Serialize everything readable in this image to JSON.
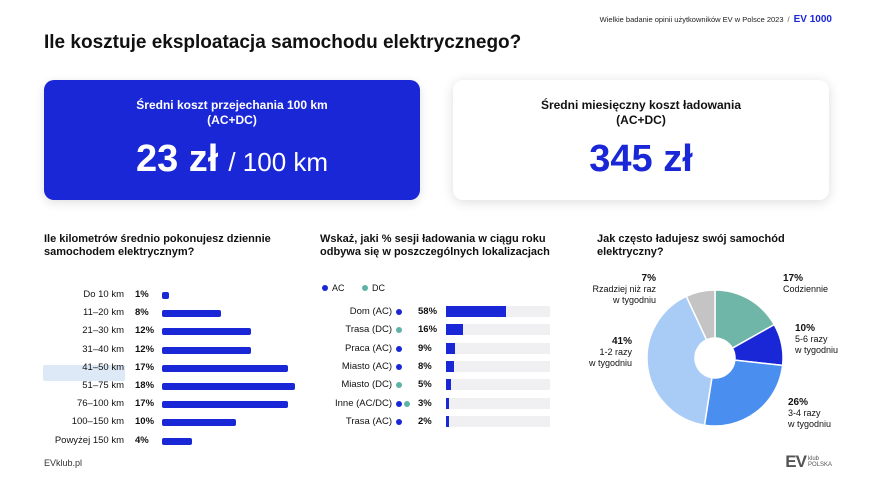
{
  "header": {
    "survey": "Wielkie badanie opinii użytkowników EV w Polsce 2023",
    "separator": "/",
    "brand": "EV 1000"
  },
  "title": "Ile kosztuje eksploatacja samochodu elektrycznego?",
  "kpi_left": {
    "label": "Średni koszt przejechania 100 km (AC+DC)",
    "value": "23 zł",
    "unit": "/ 100 km"
  },
  "kpi_right": {
    "label": "Średni miesięczny koszt ładowania (AC+DC)",
    "value": "345 zł"
  },
  "chart_data": [
    {
      "type": "bar",
      "title": "Ile kilometrów średnio pokonujesz dziennie samochodem elektrycznym?",
      "categories": [
        "Do 10 km",
        "11–20 km",
        "21–30 km",
        "31–40 km",
        "41–50 km",
        "51–75 km",
        "76–100 km",
        "100–150 km",
        "Powyżej 150 km"
      ],
      "values": [
        1,
        8,
        12,
        12,
        17,
        18,
        17,
        10,
        4
      ],
      "labels": [
        "1%",
        "8%",
        "12%",
        "12%",
        "17%",
        "18%",
        "17%",
        "10%",
        "4%"
      ],
      "highlight": "51–75 km",
      "orientation": "horizontal",
      "color": "#1a27d6"
    },
    {
      "type": "bar",
      "title": "Wskaż, jaki % sesji ładowania w ciągu roku odbywa się w poszczególnych lokalizacjach",
      "legend": [
        {
          "name": "AC",
          "color": "#1a27d6"
        },
        {
          "name": "DC",
          "color": "#5fb3a6"
        }
      ],
      "categories": [
        "Dom (AC)",
        "Trasa (DC)",
        "Praca (AC)",
        "Miasto (AC)",
        "Miasto (DC)",
        "Inne (AC/DC)",
        "Trasa (AC)"
      ],
      "values": [
        58,
        16,
        9,
        8,
        5,
        3,
        2
      ],
      "labels": [
        "58%",
        "16%",
        "9%",
        "8%",
        "5%",
        "3%",
        "2%"
      ],
      "dot_types": [
        [
          "AC"
        ],
        [
          "DC"
        ],
        [
          "AC"
        ],
        [
          "AC"
        ],
        [
          "DC"
        ],
        [
          "AC",
          "DC"
        ],
        [
          "AC"
        ]
      ],
      "orientation": "horizontal",
      "color": "#1a27d6",
      "track_color": "#f0f0f2"
    },
    {
      "type": "pie",
      "title": "Jak często ładujesz swój samochód elektryczny?",
      "slices": [
        {
          "name": "Codziennie",
          "value": 17,
          "label": "17%",
          "color": "#6fb5a8"
        },
        {
          "name": "5-6 razy w tygodniu",
          "value": 10,
          "label": "10%",
          "color": "#1a27d6"
        },
        {
          "name": "3-4 razy w tygodniu",
          "value": 26,
          "label": "26%",
          "color": "#4a8ff0"
        },
        {
          "name": "1-2 razy w tygodniu",
          "value": 41,
          "label": "41%",
          "color": "#a9ccf7"
        },
        {
          "name": "Rzadziej niż raz w tygodniu",
          "value": 7,
          "label": "7%",
          "color": "#c4c4c4"
        }
      ],
      "donut": true
    }
  ],
  "donut_labels": {
    "codziennie": {
      "pct": "17%",
      "l1": "Codziennie"
    },
    "r56": {
      "pct": "10%",
      "l1": "5-6 razy",
      "l2": "w tygodniu"
    },
    "r34": {
      "pct": "26%",
      "l1": "3-4 razy",
      "l2": "w tygodniu"
    },
    "r12": {
      "pct": "41%",
      "l1": "1-2 razy",
      "l2": "w tygodniu"
    },
    "rzadziej": {
      "pct": "7%",
      "l1": "Rzadziej niż raz",
      "l2": "w tygodniu"
    }
  },
  "footer": {
    "site": "EVklub.pl",
    "logo_main": "EV",
    "logo_sub1": "klub",
    "logo_sub2": "POLSKA"
  }
}
